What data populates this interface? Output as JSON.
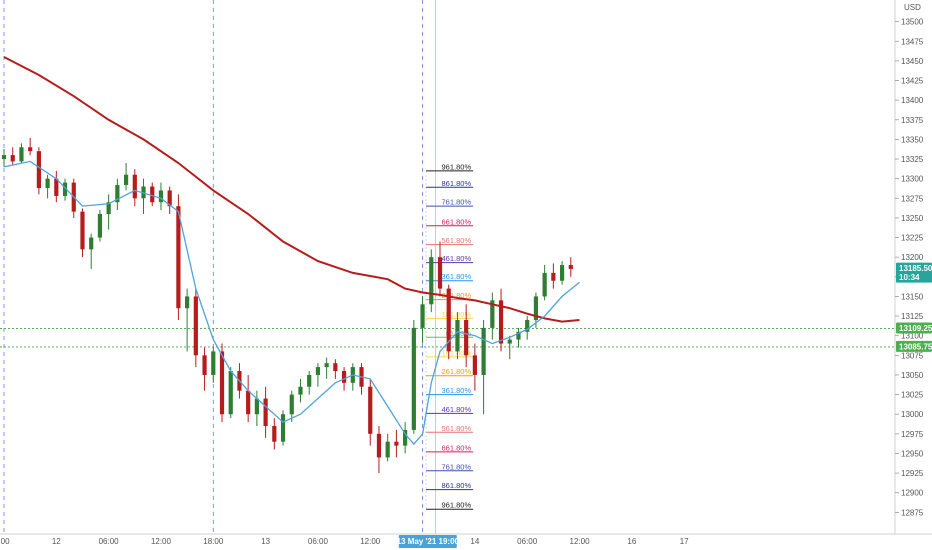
{
  "chart_data": {
    "type": "candlestick",
    "currency": "USD",
    "ylim": [
      12850,
      13525
    ],
    "y_ticks": [
      13500,
      13475,
      13450,
      13425,
      13400,
      13375,
      13350,
      13325,
      13300,
      13275,
      13250,
      13225,
      13200,
      13175,
      13150,
      13125,
      13100,
      13075,
      13050,
      13025,
      13000,
      12975,
      12950,
      12925,
      12900,
      12875,
      12850
    ],
    "x_ticks": [
      {
        "label": ":00",
        "t": 0
      },
      {
        "label": "12",
        "t": 6
      },
      {
        "label": "06:00",
        "t": 12
      },
      {
        "label": "12:00",
        "t": 18
      },
      {
        "label": "18:00",
        "t": 24
      },
      {
        "label": "13",
        "t": 30
      },
      {
        "label": "06:00",
        "t": 36
      },
      {
        "label": "12:00",
        "t": 42
      },
      {
        "label": "14",
        "t": 54
      },
      {
        "label": "06:00",
        "t": 60
      },
      {
        "label": "12:00",
        "t": 66
      },
      {
        "label": "16",
        "t": 72
      },
      {
        "label": "17",
        "t": 78
      }
    ],
    "time_highlight": "13 May '21  19:00",
    "time_highlight_t": 48.6,
    "vertical_lines_t": [
      0,
      24,
      48,
      49.5
    ],
    "dotted_levels": [
      13109.25,
      13085.75
    ],
    "price_tags": [
      {
        "value": 13185.5,
        "label": "13185.50",
        "sub": "10:34",
        "color": "#26a69a"
      },
      {
        "value": 13109.25,
        "label": "13109.25",
        "color": "#4caf50"
      },
      {
        "value": 13085.75,
        "label": "13085.75",
        "color": "#4caf50"
      }
    ],
    "fib_start_t": 48.4,
    "fib_end_t": 53.8,
    "fib_levels": [
      {
        "label": "961.80%",
        "value": 13310,
        "color": "#222222"
      },
      {
        "label": "861.80%",
        "value": 13289,
        "color": "#283593"
      },
      {
        "label": "761.80%",
        "value": 13265,
        "color": "#3f51b5"
      },
      {
        "label": "661.80%",
        "value": 13240,
        "color": "#d81b60"
      },
      {
        "label": "561.80%",
        "value": 13216,
        "color": "#e57373"
      },
      {
        "label": "461.80%",
        "value": 13193,
        "color": "#5e35b1"
      },
      {
        "label": "361.80%",
        "value": 13170,
        "color": "#2196f3"
      },
      {
        "label": "261.80%",
        "value": 13146,
        "color": "#ff9800"
      },
      {
        "label": "161.80%",
        "value": 13122,
        "color": "#ffd54f"
      },
      {
        "label": "61.80%",
        "value": 13098,
        "color": "#66bb6a"
      },
      {
        "label": "161.80%",
        "value": 13073,
        "color": "#ffd54f"
      },
      {
        "label": "261.80%",
        "value": 13049,
        "color": "#ff9800"
      },
      {
        "label": "361.80%",
        "value": 13025,
        "color": "#2196f3"
      },
      {
        "label": "461.80%",
        "value": 13001,
        "color": "#5e35b1"
      },
      {
        "label": "561.80%",
        "value": 12977,
        "color": "#e57373"
      },
      {
        "label": "661.80%",
        "value": 12952,
        "color": "#d81b60"
      },
      {
        "label": "761.80%",
        "value": 12928,
        "color": "#3f51b5"
      },
      {
        "label": "861.80%",
        "value": 12904,
        "color": "#283593"
      },
      {
        "label": "961.80%",
        "value": 12879,
        "color": "#222222"
      }
    ],
    "candles": [
      [
        13325,
        13338,
        13315,
        13330
      ],
      [
        13330,
        13340,
        13318,
        13322
      ],
      [
        13322,
        13345,
        13320,
        13340
      ],
      [
        13340,
        13352,
        13330,
        13335
      ],
      [
        13335,
        13340,
        13280,
        13288
      ],
      [
        13288,
        13305,
        13275,
        13300
      ],
      [
        13300,
        13310,
        13270,
        13278
      ],
      [
        13278,
        13300,
        13272,
        13295
      ],
      [
        13295,
        13300,
        13250,
        13258
      ],
      [
        13258,
        13262,
        13200,
        13210
      ],
      [
        13210,
        13230,
        13185,
        13225
      ],
      [
        13225,
        13260,
        13220,
        13255
      ],
      [
        13255,
        13280,
        13235,
        13270
      ],
      [
        13270,
        13300,
        13260,
        13292
      ],
      [
        13292,
        13320,
        13285,
        13305
      ],
      [
        13305,
        13312,
        13265,
        13275
      ],
      [
        13275,
        13300,
        13255,
        13290
      ],
      [
        13290,
        13295,
        13265,
        13270
      ],
      [
        13270,
        13295,
        13260,
        13285
      ],
      [
        13285,
        13290,
        13255,
        13265
      ],
      [
        13265,
        13280,
        13120,
        13135
      ],
      [
        13135,
        13160,
        13080,
        13150
      ],
      [
        13150,
        13160,
        13060,
        13075
      ],
      [
        13075,
        13085,
        13030,
        13050
      ],
      [
        13050,
        13085,
        13040,
        13080
      ],
      [
        13080,
        13090,
        12990,
        13000
      ],
      [
        13000,
        13060,
        12995,
        13055
      ],
      [
        13055,
        13065,
        13020,
        13030
      ],
      [
        13030,
        13050,
        12990,
        13000
      ],
      [
        13000,
        13030,
        12985,
        13020
      ],
      [
        13020,
        13035,
        12970,
        12985
      ],
      [
        12985,
        12995,
        12955,
        12965
      ],
      [
        12965,
        13005,
        12960,
        13000
      ],
      [
        13000,
        13030,
        12990,
        13025
      ],
      [
        13025,
        13045,
        13015,
        13035
      ],
      [
        13035,
        13055,
        13025,
        13050
      ],
      [
        13050,
        13065,
        13035,
        13060
      ],
      [
        13060,
        13072,
        13045,
        13065
      ],
      [
        13065,
        13070,
        13045,
        13055
      ],
      [
        13055,
        13060,
        13030,
        13040
      ],
      [
        13040,
        13065,
        13030,
        13060
      ],
      [
        13060,
        13065,
        13025,
        13035
      ],
      [
        13035,
        13045,
        12960,
        12975
      ],
      [
        12975,
        12985,
        12925,
        12945
      ],
      [
        12945,
        12975,
        12940,
        12965
      ],
      [
        12965,
        12980,
        12945,
        12960
      ],
      [
        12960,
        12990,
        12950,
        12980
      ],
      [
        12980,
        13120,
        12975,
        13110
      ],
      [
        13110,
        13150,
        13090,
        13140
      ],
      [
        13140,
        13210,
        13130,
        13200
      ],
      [
        13200,
        13220,
        13150,
        13160
      ],
      [
        13160,
        13165,
        13070,
        13080
      ],
      [
        13080,
        13130,
        13070,
        13120
      ],
      [
        13120,
        13140,
        13060,
        13075
      ],
      [
        13075,
        13090,
        13030,
        13050
      ],
      [
        13050,
        13120,
        13000,
        13110
      ],
      [
        13110,
        13155,
        13095,
        13145
      ],
      [
        13145,
        13160,
        13080,
        13090
      ],
      [
        13090,
        13100,
        13070,
        13095
      ],
      [
        13095,
        13110,
        13085,
        13105
      ],
      [
        13105,
        13125,
        13095,
        13120
      ],
      [
        13120,
        13155,
        13110,
        13150
      ],
      [
        13150,
        13190,
        13145,
        13180
      ],
      [
        13180,
        13192,
        13160,
        13170
      ],
      [
        13170,
        13195,
        13165,
        13190
      ],
      [
        13190,
        13200,
        13175,
        13185
      ]
    ],
    "ema_fast": [
      [
        0,
        13315
      ],
      [
        3,
        13322
      ],
      [
        6,
        13300
      ],
      [
        9,
        13265
      ],
      [
        12,
        13268
      ],
      [
        15,
        13285
      ],
      [
        18,
        13275
      ],
      [
        20,
        13258
      ],
      [
        22,
        13160
      ],
      [
        24,
        13095
      ],
      [
        26,
        13055
      ],
      [
        28,
        13030
      ],
      [
        30,
        13010
      ],
      [
        32,
        12990
      ],
      [
        34,
        13000
      ],
      [
        36,
        13020
      ],
      [
        38,
        13040
      ],
      [
        40,
        13050
      ],
      [
        42,
        13045
      ],
      [
        44,
        13010
      ],
      [
        46,
        12975
      ],
      [
        47,
        12962
      ],
      [
        48,
        12975
      ],
      [
        49,
        13040
      ],
      [
        50,
        13080
      ],
      [
        52,
        13105
      ],
      [
        54,
        13100
      ],
      [
        56,
        13090
      ],
      [
        58,
        13098
      ],
      [
        60,
        13108
      ],
      [
        62,
        13125
      ],
      [
        64,
        13150
      ],
      [
        66,
        13168
      ]
    ],
    "ma_slow": [
      [
        0,
        13455
      ],
      [
        4,
        13432
      ],
      [
        8,
        13405
      ],
      [
        12,
        13375
      ],
      [
        16,
        13350
      ],
      [
        20,
        13320
      ],
      [
        24,
        13285
      ],
      [
        28,
        13255
      ],
      [
        32,
        13220
      ],
      [
        36,
        13195
      ],
      [
        40,
        13180
      ],
      [
        44,
        13172
      ],
      [
        46,
        13160
      ],
      [
        48,
        13155
      ],
      [
        50,
        13152
      ],
      [
        52,
        13148
      ],
      [
        54,
        13145
      ],
      [
        56,
        13140
      ],
      [
        58,
        13135
      ],
      [
        60,
        13128
      ],
      [
        62,
        13122
      ],
      [
        64,
        13118
      ],
      [
        66,
        13120
      ]
    ]
  }
}
